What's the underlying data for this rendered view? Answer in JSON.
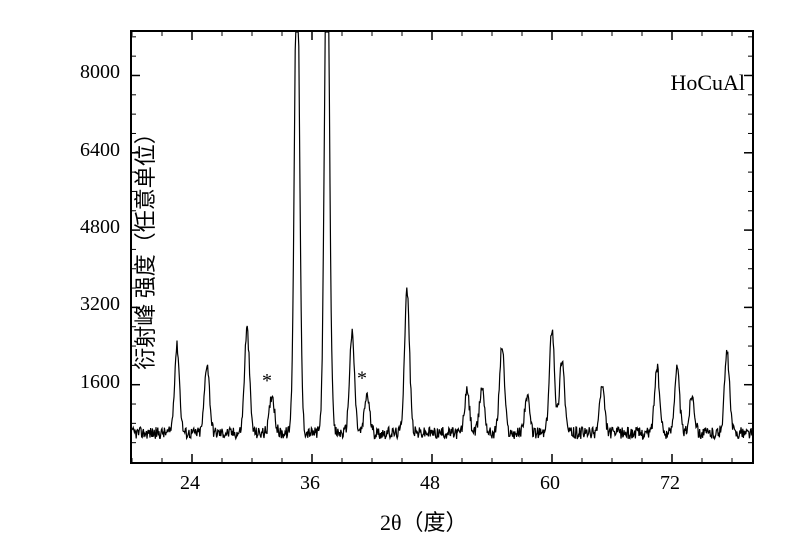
{
  "chart": {
    "type": "line",
    "xlabel": "2θ（度）",
    "ylabel": "衍射峰 强度（任意单位）",
    "xlabel_fontsize": 22,
    "ylabel_fontsize": 22,
    "sample_label": "HoCuAl",
    "sample_label_fontsize": 22,
    "background_color": "#ffffff",
    "line_color": "#000000",
    "border_color": "#000000",
    "border_width": 2,
    "xlim": [
      18,
      80
    ],
    "ylim": [
      0,
      8900
    ],
    "xtick_step": 12,
    "ytick_step": 1600,
    "xticks": [
      24,
      36,
      48,
      60,
      72
    ],
    "yticks": [
      1600,
      3200,
      4800,
      6400,
      8000
    ],
    "tick_fontsize": 20,
    "asterisk_markers": [
      {
        "x": 31.5,
        "y": 1550
      },
      {
        "x": 41,
        "y": 1600
      }
    ],
    "peaks": [
      {
        "x": 22.5,
        "intensity": 2400
      },
      {
        "x": 25.5,
        "intensity": 2050
      },
      {
        "x": 29.5,
        "intensity": 2750
      },
      {
        "x": 32,
        "intensity": 1400
      },
      {
        "x": 34.5,
        "intensity": 11000
      },
      {
        "x": 37.5,
        "intensity": 11500
      },
      {
        "x": 40,
        "intensity": 2650
      },
      {
        "x": 41.5,
        "intensity": 1400
      },
      {
        "x": 45.5,
        "intensity": 3550
      },
      {
        "x": 51.5,
        "intensity": 1450
      },
      {
        "x": 53,
        "intensity": 1550
      },
      {
        "x": 55,
        "intensity": 2400
      },
      {
        "x": 57.5,
        "intensity": 1350
      },
      {
        "x": 60,
        "intensity": 2800
      },
      {
        "x": 61,
        "intensity": 2150
      },
      {
        "x": 65,
        "intensity": 1550
      },
      {
        "x": 70.5,
        "intensity": 1950
      },
      {
        "x": 72.5,
        "intensity": 1950
      },
      {
        "x": 74,
        "intensity": 1400
      },
      {
        "x": 77.5,
        "intensity": 2250
      }
    ],
    "baseline": 600,
    "noise_amplitude": 250,
    "peak_width": 0.7
  }
}
